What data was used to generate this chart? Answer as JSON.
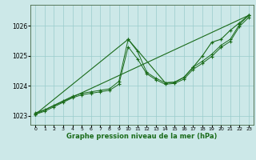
{
  "title": "Graphe pression niveau de la mer (hPa)",
  "bg_color": "#cce8e8",
  "grid_color": "#99cccc",
  "line_color": "#1a6b1a",
  "xlim": [
    -0.5,
    23.5
  ],
  "ylim": [
    1022.7,
    1026.7
  ],
  "yticks": [
    1023,
    1024,
    1025,
    1026
  ],
  "series1_x": [
    0,
    1,
    2,
    3,
    4,
    5,
    6,
    7,
    8,
    9,
    10,
    11,
    12,
    13,
    14,
    15,
    16,
    17,
    18,
    19,
    20,
    21,
    22,
    23
  ],
  "series1_y": [
    1023.1,
    1023.2,
    1023.35,
    1023.5,
    1023.65,
    1023.75,
    1023.8,
    1023.85,
    1023.9,
    1024.15,
    1025.55,
    1025.15,
    1024.45,
    1024.25,
    1024.1,
    1024.12,
    1024.28,
    1024.62,
    1024.82,
    1025.05,
    1025.35,
    1025.55,
    1026.05,
    1026.35
  ],
  "series2_x": [
    0,
    1,
    2,
    3,
    4,
    5,
    6,
    7,
    8,
    9,
    10,
    11,
    12,
    13,
    14,
    15,
    16,
    17,
    18,
    19,
    20,
    21,
    22,
    23
  ],
  "series2_y": [
    1023.05,
    1023.15,
    1023.3,
    1023.45,
    1023.6,
    1023.7,
    1023.75,
    1023.8,
    1023.85,
    1024.05,
    1025.3,
    1024.9,
    1024.4,
    1024.2,
    1024.05,
    1024.08,
    1024.22,
    1024.55,
    1024.75,
    1024.98,
    1025.28,
    1025.48,
    1025.98,
    1026.28
  ],
  "series3_x": [
    0,
    23
  ],
  "series3_y": [
    1023.05,
    1026.35
  ],
  "series4_x": [
    0,
    10,
    14,
    15,
    16,
    17,
    18,
    19,
    20,
    21,
    22,
    23
  ],
  "series4_y": [
    1023.05,
    1025.55,
    1024.1,
    1024.12,
    1024.28,
    1024.62,
    1025.0,
    1025.45,
    1025.55,
    1025.85,
    1026.1,
    1026.35
  ]
}
